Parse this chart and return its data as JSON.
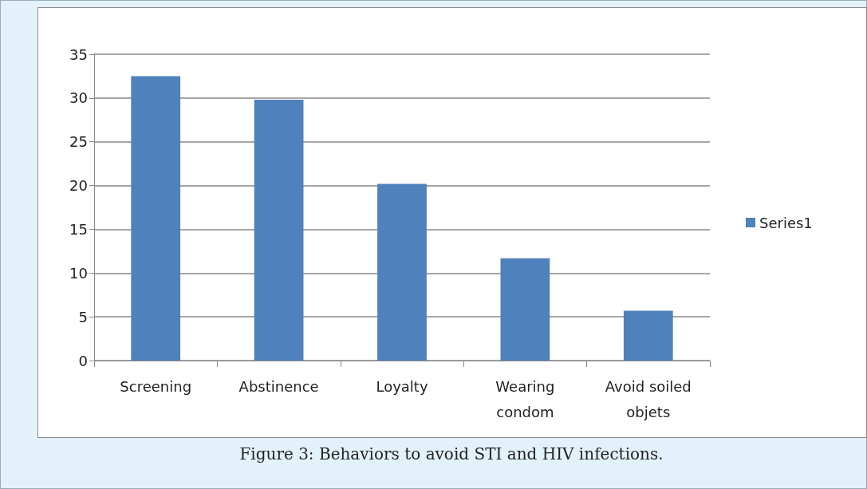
{
  "chart_data": {
    "type": "bar",
    "categories": [
      "Screening",
      "Abstinence",
      "Loyalty",
      "Wearing\ncondom",
      "Avoid soiled\nobjets"
    ],
    "series": [
      {
        "name": "Series1",
        "color": "#4f81bd",
        "values": [
          32.5,
          29.8,
          20.2,
          11.7,
          5.7
        ]
      }
    ],
    "ylim": [
      0,
      35
    ],
    "yticks": [
      0,
      5,
      10,
      15,
      20,
      25,
      30,
      35
    ],
    "grid": "y",
    "legend": "right",
    "annotations": [
      "Figure 3: Behaviors to avoid STI and HIV infections."
    ]
  }
}
